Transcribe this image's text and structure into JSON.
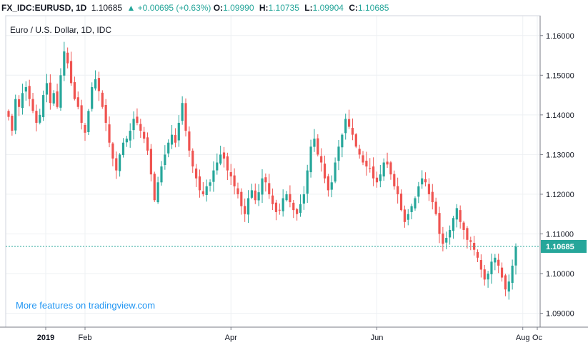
{
  "header": {
    "symbol": "FX_IDC:EURUSD, 1D",
    "last": "1.10685",
    "change_arrow": "▲",
    "change": "+0.00695 (+0.63%)",
    "o_label": "O:",
    "o_value": "1.09990",
    "h_label": "H:",
    "h_value": "1.10735",
    "l_label": "L:",
    "l_value": "1.09904",
    "c_label": "C:",
    "c_value": "1.10685"
  },
  "chart_data": {
    "type": "candlestick",
    "title": "Euro / U.S. Dollar, 1D, IDC",
    "watermark_link": "More features on tradingview.com",
    "ylim": [
      1.0865,
      1.165
    ],
    "y_ticks": [
      "1.16000",
      "1.15000",
      "1.14000",
      "1.13000",
      "1.12000",
      "1.11000",
      "1.10000",
      "1.09000"
    ],
    "x_tick_labels": [
      "2019",
      "Feb",
      "Apr",
      "Jun",
      "Aug",
      "Oc"
    ],
    "last_price_label": "1.10685",
    "last_price": 1.10685,
    "grid": true,
    "colors": {
      "up": "#26a69a",
      "down": "#ef5350",
      "grid": "#eef0f3",
      "axis": "#787b86",
      "text": "#131722",
      "link": "#2196f3",
      "price_line": "#26a69a"
    },
    "price_path": [
      1.1395,
      1.136,
      1.144,
      1.142,
      1.1455,
      1.147,
      1.144,
      1.141,
      1.138,
      1.14,
      1.145,
      1.148,
      1.143,
      1.1455,
      1.142,
      1.15,
      1.156,
      1.153,
      1.148,
      1.144,
      1.142,
      1.138,
      1.1355,
      1.141,
      1.147,
      1.149,
      1.146,
      1.142,
      1.138,
      1.133,
      1.129,
      1.126,
      1.13,
      1.133,
      1.134,
      1.136,
      1.139,
      1.138,
      1.136,
      1.134,
      1.131,
      1.125,
      1.1185,
      1.123,
      1.127,
      1.13,
      1.133,
      1.135,
      1.133,
      1.138,
      1.143,
      1.136,
      1.131,
      1.127,
      1.124,
      1.121,
      1.12,
      1.122,
      1.123,
      1.126,
      1.128,
      1.13,
      1.129,
      1.126,
      1.1245,
      1.122,
      1.12,
      1.117,
      1.115,
      1.119,
      1.121,
      1.1185,
      1.1205,
      1.124,
      1.123,
      1.12,
      1.1175,
      1.1155,
      1.116,
      1.119,
      1.12,
      1.118,
      1.116,
      1.115,
      1.1175,
      1.12,
      1.126,
      1.132,
      1.134,
      1.13,
      1.128,
      1.124,
      1.121,
      1.123,
      1.128,
      1.132,
      1.135,
      1.139,
      1.137,
      1.135,
      1.132,
      1.13,
      1.128,
      1.127,
      1.1265,
      1.124,
      1.123,
      1.125,
      1.128,
      1.1275,
      1.125,
      1.122,
      1.12,
      1.116,
      1.113,
      1.115,
      1.117,
      1.119,
      1.122,
      1.124,
      1.123,
      1.12,
      1.118,
      1.115,
      1.11,
      1.1075,
      1.109,
      1.111,
      1.114,
      1.1165,
      1.113,
      1.111,
      1.1085,
      1.108,
      1.106,
      1.104,
      1.101,
      1.0985,
      1.1,
      1.103,
      1.104,
      1.102,
      1.099,
      1.096,
      1.098,
      1.102,
      1.1068
    ],
    "x_ticks_index": {
      "Feb": 22,
      "Apr": 64,
      "Jun": 106,
      "Aug": 148
    }
  }
}
